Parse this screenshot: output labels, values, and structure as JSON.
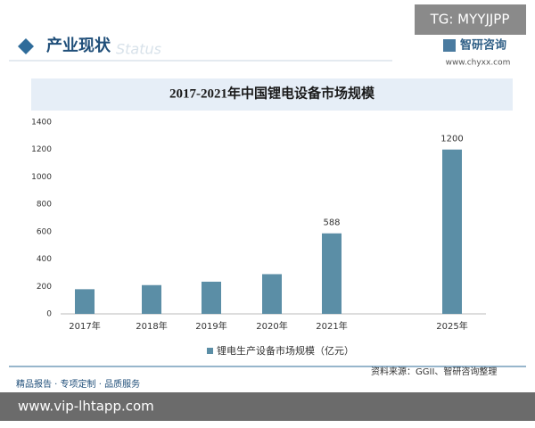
{
  "header": {
    "badge": "TG: MYYJJPP",
    "section": "产业现状",
    "section_en": "Status",
    "brand": "智研咨询",
    "site": "www.chyxx.com"
  },
  "chart_data": {
    "type": "bar",
    "title": "2017-2021年中国锂电设备市场规模",
    "categories": [
      "2017年",
      "2018年",
      "2019年",
      "2020年",
      "2021年",
      "2025年"
    ],
    "series": [
      {
        "name": "锂电生产设备市场规模（亿元）",
        "color": "#5b8ea6",
        "values": [
          180,
          210,
          235,
          290,
          588,
          1200
        ]
      }
    ],
    "ylim": [
      0,
      1400
    ],
    "yticks": [
      0,
      200,
      400,
      600,
      800,
      1000,
      1200,
      1400
    ],
    "grid": false
  },
  "footer": {
    "source": "资料来源：GGII、智研咨询整理",
    "slogan": "精品报告 · 专项定制 · 品质服务",
    "url": "www.vip-lhtapp.com"
  }
}
